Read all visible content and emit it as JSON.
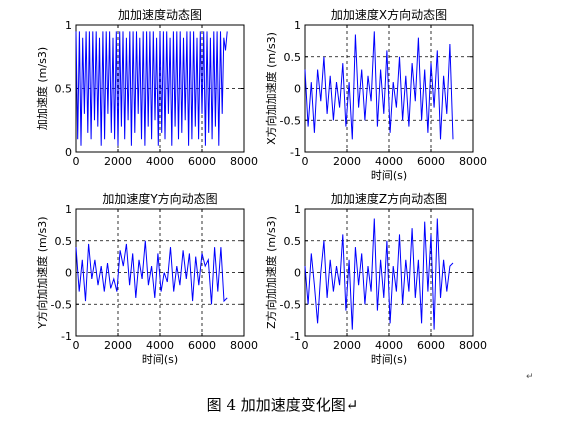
{
  "caption": "图 4  加加速度变化图↵",
  "paragraph_mark": "↵",
  "chart_data": [
    {
      "type": "line",
      "title": "加加速度动态图",
      "ylabel": "加加速度 (m/s3)",
      "xlabel": "",
      "xlim": [
        0,
        8000
      ],
      "ylim": [
        0,
        1
      ],
      "xticks": [
        "0",
        "2000",
        "4000",
        "6000",
        "8000"
      ],
      "yticks": [
        "0",
        "0.5",
        "1"
      ],
      "grid": true,
      "series": [
        {
          "color": "#0000ff",
          "x": [
            0,
            80,
            160,
            240,
            320,
            400,
            480,
            560,
            640,
            720,
            800,
            880,
            960,
            1040,
            1120,
            1200,
            1280,
            1360,
            1440,
            1520,
            1600,
            1680,
            1760,
            1840,
            1920,
            2000,
            2080,
            2160,
            2240,
            2320,
            2400,
            2480,
            2560,
            2640,
            2720,
            2800,
            2880,
            2960,
            3040,
            3120,
            3200,
            3280,
            3360,
            3440,
            3520,
            3600,
            3680,
            3760,
            3840,
            3920,
            4000,
            4080,
            4160,
            4240,
            4320,
            4400,
            4480,
            4560,
            4640,
            4720,
            4800,
            4880,
            4960,
            5040,
            5120,
            5200,
            5280,
            5360,
            5440,
            5520,
            5600,
            5680,
            5760,
            5840,
            5920,
            6000,
            6080,
            6160,
            6240,
            6320,
            6400,
            6480,
            6560,
            6640,
            6720,
            6800,
            6880,
            6960,
            7040,
            7120,
            7200
          ],
          "y": [
            0.95,
            0.1,
            0.95,
            0.05,
            0.9,
            0.3,
            0.95,
            0.15,
            0.95,
            0.1,
            0.95,
            0.25,
            0.95,
            0.2,
            0.9,
            0.05,
            0.95,
            0.1,
            0.95,
            0.3,
            0.95,
            0.15,
            0.9,
            0.1,
            0.95,
            0.05,
            0.95,
            0.2,
            0.95,
            0.1,
            0.9,
            0.25,
            0.95,
            0.05,
            0.95,
            0.15,
            0.95,
            0.3,
            0.9,
            0.1,
            0.95,
            0.05,
            0.95,
            0.2,
            0.95,
            0.1,
            0.95,
            0.25,
            0.9,
            0.05,
            0.95,
            0.15,
            0.95,
            0.1,
            0.95,
            0.3,
            0.9,
            0.05,
            0.95,
            0.2,
            0.95,
            0.1,
            0.95,
            0.15,
            0.9,
            0.25,
            0.95,
            0.05,
            0.95,
            0.1,
            0.95,
            0.2,
            0.9,
            0.1,
            0.95,
            0.3,
            0.95,
            0.05,
            0.95,
            0.15,
            0.9,
            0.1,
            0.95,
            0.2,
            0.95,
            0.05,
            0.95,
            0.3,
            0.9,
            0.8,
            0.95
          ]
        }
      ]
    },
    {
      "type": "line",
      "title": "加加速度X方向动态图",
      "ylabel": "X方向加加速度 (m/s3)",
      "xlabel": "时间(s)",
      "xlim": [
        0,
        8000
      ],
      "ylim": [
        -1,
        1
      ],
      "xticks": [
        "0",
        "2000",
        "4000",
        "6000",
        "8000"
      ],
      "yticks": [
        "-1",
        "-0.5",
        "0",
        "0.5",
        "1"
      ],
      "grid": true,
      "series": [
        {
          "color": "#0000ff",
          "x": [
            0,
            150,
            300,
            450,
            600,
            750,
            900,
            1050,
            1200,
            1350,
            1500,
            1650,
            1800,
            1950,
            2100,
            2250,
            2400,
            2550,
            2700,
            2850,
            3000,
            3150,
            3300,
            3450,
            3600,
            3750,
            3900,
            4050,
            4200,
            4350,
            4500,
            4650,
            4800,
            4950,
            5100,
            5250,
            5400,
            5550,
            5700,
            5850,
            6000,
            6150,
            6300,
            6450,
            6600,
            6750,
            6900,
            7050
          ],
          "y": [
            0.3,
            -0.6,
            0.1,
            -0.7,
            0.3,
            -0.2,
            0.5,
            -0.4,
            0.2,
            -0.5,
            0.1,
            -0.3,
            0.4,
            -0.6,
            0.1,
            -0.8,
            0.85,
            -0.3,
            0.3,
            -0.5,
            0.2,
            -0.2,
            0.9,
            -0.6,
            0.3,
            -0.4,
            0.6,
            -0.7,
            0.1,
            -0.3,
            0.5,
            -0.5,
            0.2,
            -0.6,
            0.4,
            -0.2,
            0.8,
            -0.5,
            0.3,
            -0.7,
            0.4,
            -0.3,
            0.6,
            -0.8,
            0.2,
            -0.4,
            0.7,
            -0.8
          ]
        }
      ]
    },
    {
      "type": "line",
      "title": "加加速度Y方向动态图",
      "ylabel": "Y方向加加速度 (m/s3)",
      "xlabel": "时间(s)",
      "xlim": [
        0,
        8000
      ],
      "ylim": [
        -1,
        1
      ],
      "xticks": [
        "0",
        "2000",
        "4000",
        "6000",
        "8000"
      ],
      "yticks": [
        "-1",
        "-0.5",
        "0",
        "0.5",
        "1"
      ],
      "grid": true,
      "series": [
        {
          "color": "#0000ff",
          "x": [
            0,
            150,
            300,
            450,
            600,
            750,
            900,
            1050,
            1200,
            1350,
            1500,
            1650,
            1800,
            1950,
            2100,
            2250,
            2400,
            2550,
            2700,
            2850,
            3000,
            3150,
            3300,
            3450,
            3600,
            3750,
            3900,
            4050,
            4200,
            4350,
            4500,
            4650,
            4800,
            4950,
            5100,
            5250,
            5400,
            5550,
            5700,
            5850,
            6000,
            6150,
            6300,
            6450,
            6600,
            6750,
            6900,
            7050,
            7200
          ],
          "y": [
            0.4,
            -0.3,
            0.2,
            -0.45,
            0.45,
            -0.1,
            0.2,
            -0.2,
            0.1,
            -0.3,
            0.15,
            -0.25,
            -0.1,
            -0.3,
            0.35,
            0.1,
            0.45,
            -0.2,
            0.3,
            -0.4,
            0.2,
            -0.1,
            0.5,
            -0.2,
            0.1,
            -0.4,
            0.3,
            -0.3,
            0.0,
            -0.15,
            0.4,
            -0.3,
            0.1,
            -0.2,
            0.35,
            -0.1,
            0.3,
            -0.45,
            0.25,
            -0.2,
            0.3,
            0.1,
            0.2,
            -0.5,
            0.4,
            -0.3,
            0.4,
            -0.45,
            -0.4
          ]
        }
      ]
    },
    {
      "type": "line",
      "title": "加加速度Z方向动态图",
      "ylabel": "Z方向加加速度 (m/s3)",
      "xlabel": "时间(s)",
      "xlim": [
        0,
        8000
      ],
      "ylim": [
        -1,
        1
      ],
      "xticks": [
        "0",
        "2000",
        "4000",
        "6000",
        "8000"
      ],
      "yticks": [
        "-1",
        "-0.5",
        "0",
        "0.5",
        "1"
      ],
      "grid": true,
      "series": [
        {
          "color": "#0000ff",
          "x": [
            0,
            150,
            300,
            450,
            600,
            750,
            900,
            1050,
            1200,
            1350,
            1500,
            1650,
            1800,
            1950,
            2100,
            2250,
            2400,
            2550,
            2700,
            2850,
            3000,
            3150,
            3300,
            3450,
            3600,
            3750,
            3900,
            4050,
            4200,
            4350,
            4500,
            4650,
            4800,
            4950,
            5100,
            5250,
            5400,
            5550,
            5700,
            5850,
            6000,
            6150,
            6300,
            6450,
            6600,
            6750,
            6900,
            7050
          ],
          "y": [
            0.1,
            -0.5,
            0.3,
            -0.2,
            -0.8,
            0.0,
            0.5,
            -0.4,
            0.2,
            -0.3,
            0.1,
            -0.2,
            0.6,
            -0.6,
            0.2,
            -0.9,
            0.4,
            -0.2,
            0.3,
            -0.5,
            0.1,
            -0.3,
            0.85,
            -0.6,
            0.2,
            -0.4,
            0.5,
            -0.8,
            0.1,
            -0.3,
            0.6,
            -0.5,
            0.2,
            -0.3,
            0.7,
            -0.4,
            0.2,
            -0.8,
            0.8,
            -0.3,
            0.6,
            -0.9,
            0.85,
            -0.4,
            0.2,
            -0.3,
            0.1,
            0.15
          ]
        }
      ]
    }
  ]
}
